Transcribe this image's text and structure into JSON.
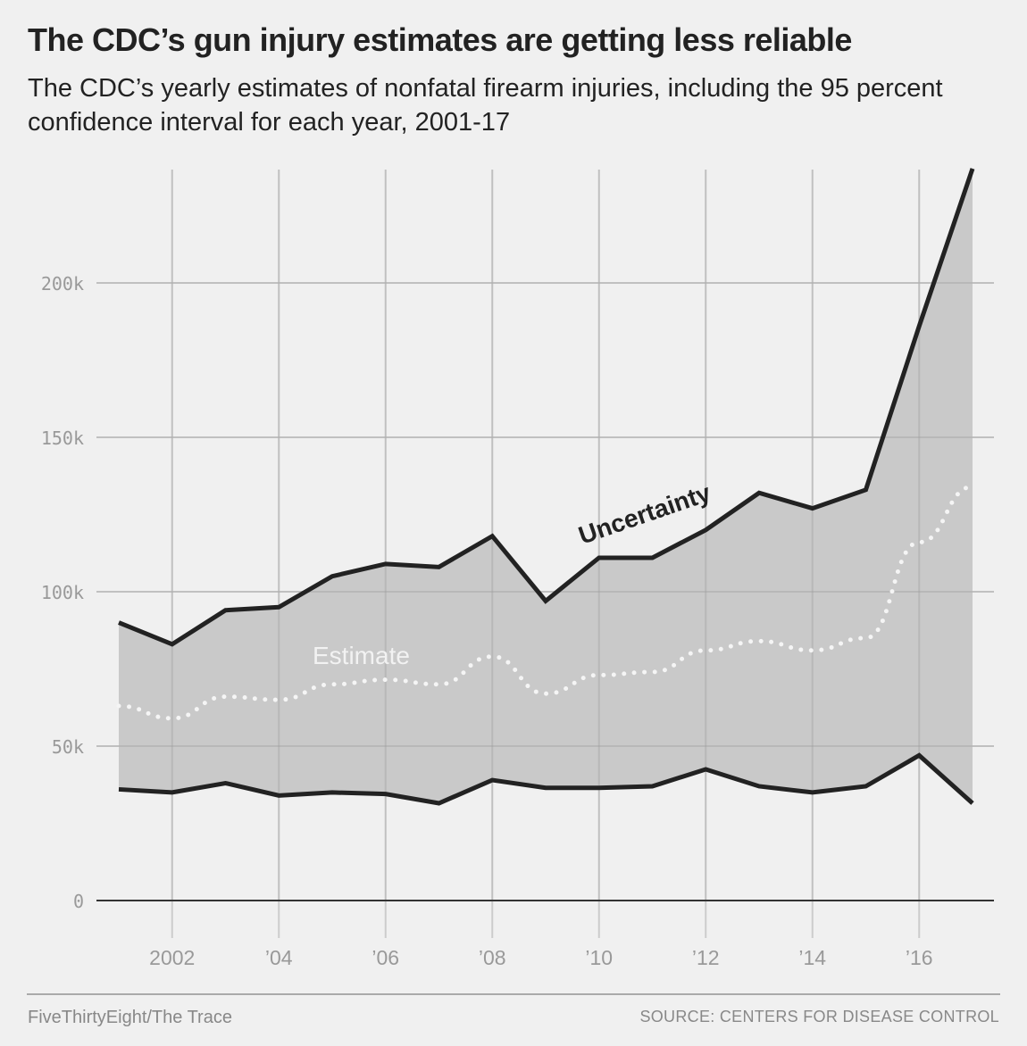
{
  "title": "The CDC’s gun injury estimates are getting less reliable",
  "subtitle": "The CDC’s yearly estimates of nonfatal firearm injuries, including the 95 percent confidence interval for each year, 2001-17",
  "footer": {
    "credit": "FiveThirtyEight/The Trace",
    "source": "SOURCE: CENTERS FOR DISEASE CONTROL"
  },
  "chart_data": {
    "type": "area",
    "title": "The CDC’s gun injury estimates are getting less reliable",
    "xlabel": "",
    "ylabel": "",
    "x": [
      2001,
      2002,
      2003,
      2004,
      2005,
      2006,
      2007,
      2008,
      2009,
      2010,
      2011,
      2012,
      2013,
      2014,
      2015,
      2016,
      2017
    ],
    "series": [
      {
        "name": "Upper bound",
        "values": [
          90,
          83,
          94,
          95,
          105,
          109,
          108,
          118,
          97,
          111,
          111,
          120,
          132,
          127,
          133,
          186,
          237
        ]
      },
      {
        "name": "Estimate",
        "values": [
          63,
          59,
          66,
          65,
          70,
          71.5,
          70,
          79,
          67,
          73,
          74,
          81,
          84,
          81,
          85,
          116,
          134
        ]
      },
      {
        "name": "Lower bound",
        "values": [
          36,
          35,
          38,
          34,
          35,
          34.5,
          31.5,
          39,
          36.5,
          36.5,
          37,
          42.5,
          37,
          35,
          37,
          47,
          31.5
        ]
      }
    ],
    "units": "thousands of injuries",
    "ylim": [
      0,
      240
    ],
    "xlim": [
      2000.4,
      2017.4
    ],
    "yticks": [
      0,
      50,
      100,
      150,
      200
    ],
    "ytick_labels": [
      "0",
      "50k",
      "100k",
      "150k",
      "200k"
    ],
    "xticks": [
      2002,
      2004,
      2006,
      2008,
      2010,
      2012,
      2014,
      2016
    ],
    "xtick_labels": [
      "2002",
      "’04",
      "’06",
      "’08",
      "’10",
      "’12",
      "’14",
      "’16"
    ],
    "annotations": [
      {
        "text": "Uncertainty",
        "near": "upper band, 2010-2012"
      },
      {
        "text": "Estimate",
        "near": "estimate line, 2005-2006"
      }
    ],
    "grid": true,
    "colors": {
      "band": "#c2c2c2",
      "bounds": "#222222",
      "estimate": "#f5f5f5",
      "grid": "#cccccc"
    }
  }
}
